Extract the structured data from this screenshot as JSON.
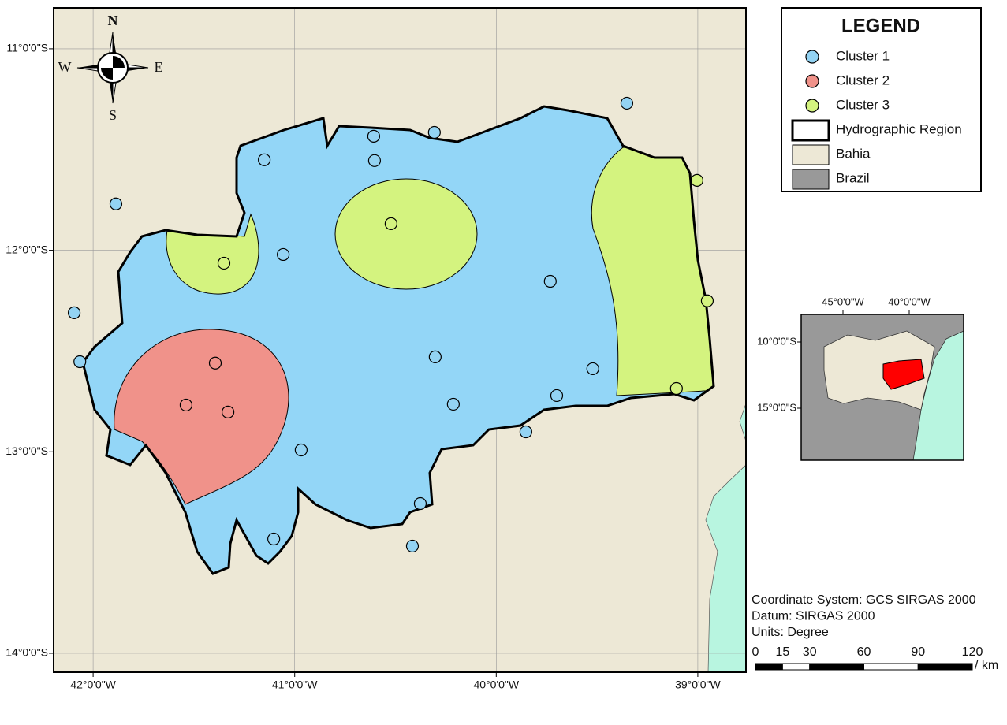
{
  "map": {
    "xlim": [
      -42.196,
      -38.761
    ],
    "ylim": [
      -14.094,
      -10.797
    ],
    "xticks": [
      {
        "value": -42,
        "label": "42°0'0\"W"
      },
      {
        "value": -41,
        "label": "41°0'0\"W"
      },
      {
        "value": -40,
        "label": "40°0'0\"W"
      },
      {
        "value": -39,
        "label": "39°0'0\"W"
      }
    ],
    "yticks": [
      {
        "value": -11,
        "label": "11°0'0\"S"
      },
      {
        "value": -12,
        "label": "12°0'0\"S"
      },
      {
        "value": -13,
        "label": "13°0'0\"S"
      },
      {
        "value": -14,
        "label": "14°0'0\"S"
      }
    ],
    "grid": true,
    "clusters": [
      {
        "name": "Cluster 1",
        "color": "#93d3f3",
        "points": [
          [
            -39.352,
            -11.27
          ],
          [
            -40.608,
            -11.434
          ],
          [
            -40.307,
            -11.415
          ],
          [
            -41.151,
            -11.551
          ],
          [
            -40.604,
            -11.555
          ],
          [
            -41.887,
            -11.77
          ],
          [
            -41.057,
            -12.021
          ],
          [
            -42.094,
            -12.31
          ],
          [
            -39.732,
            -12.154
          ],
          [
            -42.066,
            -12.553
          ],
          [
            -40.303,
            -12.529
          ],
          [
            -39.521,
            -12.588
          ],
          [
            -39.7,
            -12.721
          ],
          [
            -40.213,
            -12.764
          ],
          [
            -39.853,
            -12.901
          ],
          [
            -40.968,
            -12.991
          ],
          [
            -40.377,
            -13.257
          ],
          [
            -41.104,
            -13.433
          ],
          [
            -40.416,
            -13.468
          ]
        ]
      },
      {
        "name": "Cluster 2",
        "color": "#f0928a",
        "points": [
          [
            -41.394,
            -12.56
          ],
          [
            -41.539,
            -12.768
          ],
          [
            -41.331,
            -12.803
          ]
        ]
      },
      {
        "name": "Cluster 3",
        "color": "#d4f37f",
        "points": [
          [
            -40.522,
            -11.868
          ],
          [
            -41.351,
            -12.064
          ],
          [
            -39.004,
            -11.653
          ],
          [
            -38.953,
            -12.251
          ],
          [
            -39.106,
            -12.686
          ]
        ]
      }
    ]
  },
  "compass": {
    "n": "N",
    "s": "S",
    "e": "E",
    "w": "W"
  },
  "legend": {
    "title": "LEGEND",
    "layers": [
      {
        "name": "Hydrographic Region",
        "color": "#ffffff"
      },
      {
        "name": "Bahia",
        "color": "#ede8d6"
      },
      {
        "name": "Brazil",
        "color": "#999999"
      }
    ]
  },
  "inset": {
    "xlim": [
      -48.155,
      -35.893
    ],
    "ylim": [
      -18.929,
      -7.917
    ],
    "xticks": [
      {
        "value": -45,
        "label": "45°0'0\"W"
      },
      {
        "value": -40,
        "label": "40°0'0\"W"
      }
    ],
    "yticks": [
      {
        "value": -10,
        "label": "10°0'0\"S"
      },
      {
        "value": -15,
        "label": "15°0'0\"S"
      }
    ]
  },
  "notes": [
    "Coordinate System: GCS SIRGAS 2000",
    "Datum: SIRGAS 2000",
    "Units: Degree"
  ],
  "scale_bar": {
    "ticks": [
      0,
      15,
      30,
      60,
      90,
      120
    ],
    "unit": "/ km"
  }
}
